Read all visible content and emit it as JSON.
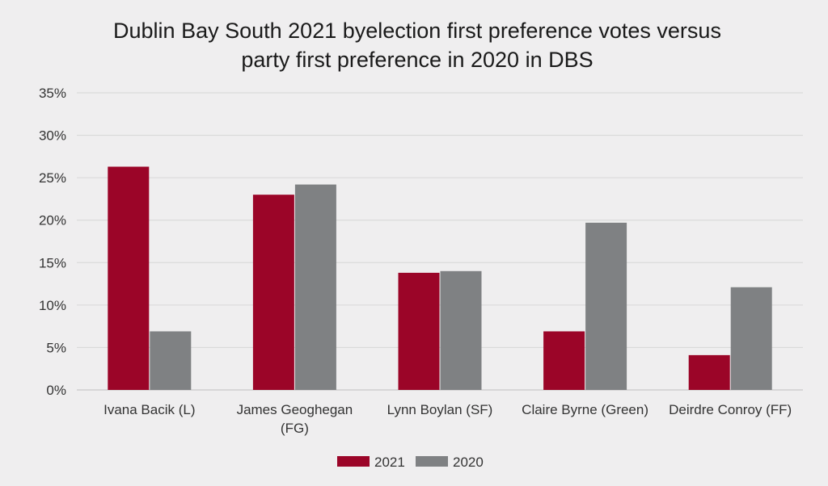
{
  "chart_data": {
    "type": "bar",
    "title_lines": [
      "Dublin Bay South 2021 byelection first preference votes versus",
      "party first preference in 2020 in DBS"
    ],
    "categories": [
      [
        "Ivana Bacik (L)"
      ],
      [
        "James Geoghegan",
        "(FG)"
      ],
      [
        "Lynn Boylan (SF)"
      ],
      [
        "Claire Byrne (Green)"
      ],
      [
        "Deirdre Conroy (FF)"
      ]
    ],
    "series": [
      {
        "name": "2021",
        "color": "#9b0528",
        "values": [
          26.3,
          23.0,
          13.8,
          6.9,
          4.1
        ]
      },
      {
        "name": "2020",
        "color": "#7f8183",
        "values": [
          6.9,
          24.2,
          14.0,
          19.7,
          12.1
        ]
      }
    ],
    "yticks": [
      "0%",
      "5%",
      "10%",
      "15%",
      "20%",
      "25%",
      "30%",
      "35%"
    ],
    "ylim": [
      0,
      35
    ],
    "ystep": 5,
    "xlabel": "",
    "ylabel": "",
    "legend_position": "bottom-center",
    "grid": true
  }
}
